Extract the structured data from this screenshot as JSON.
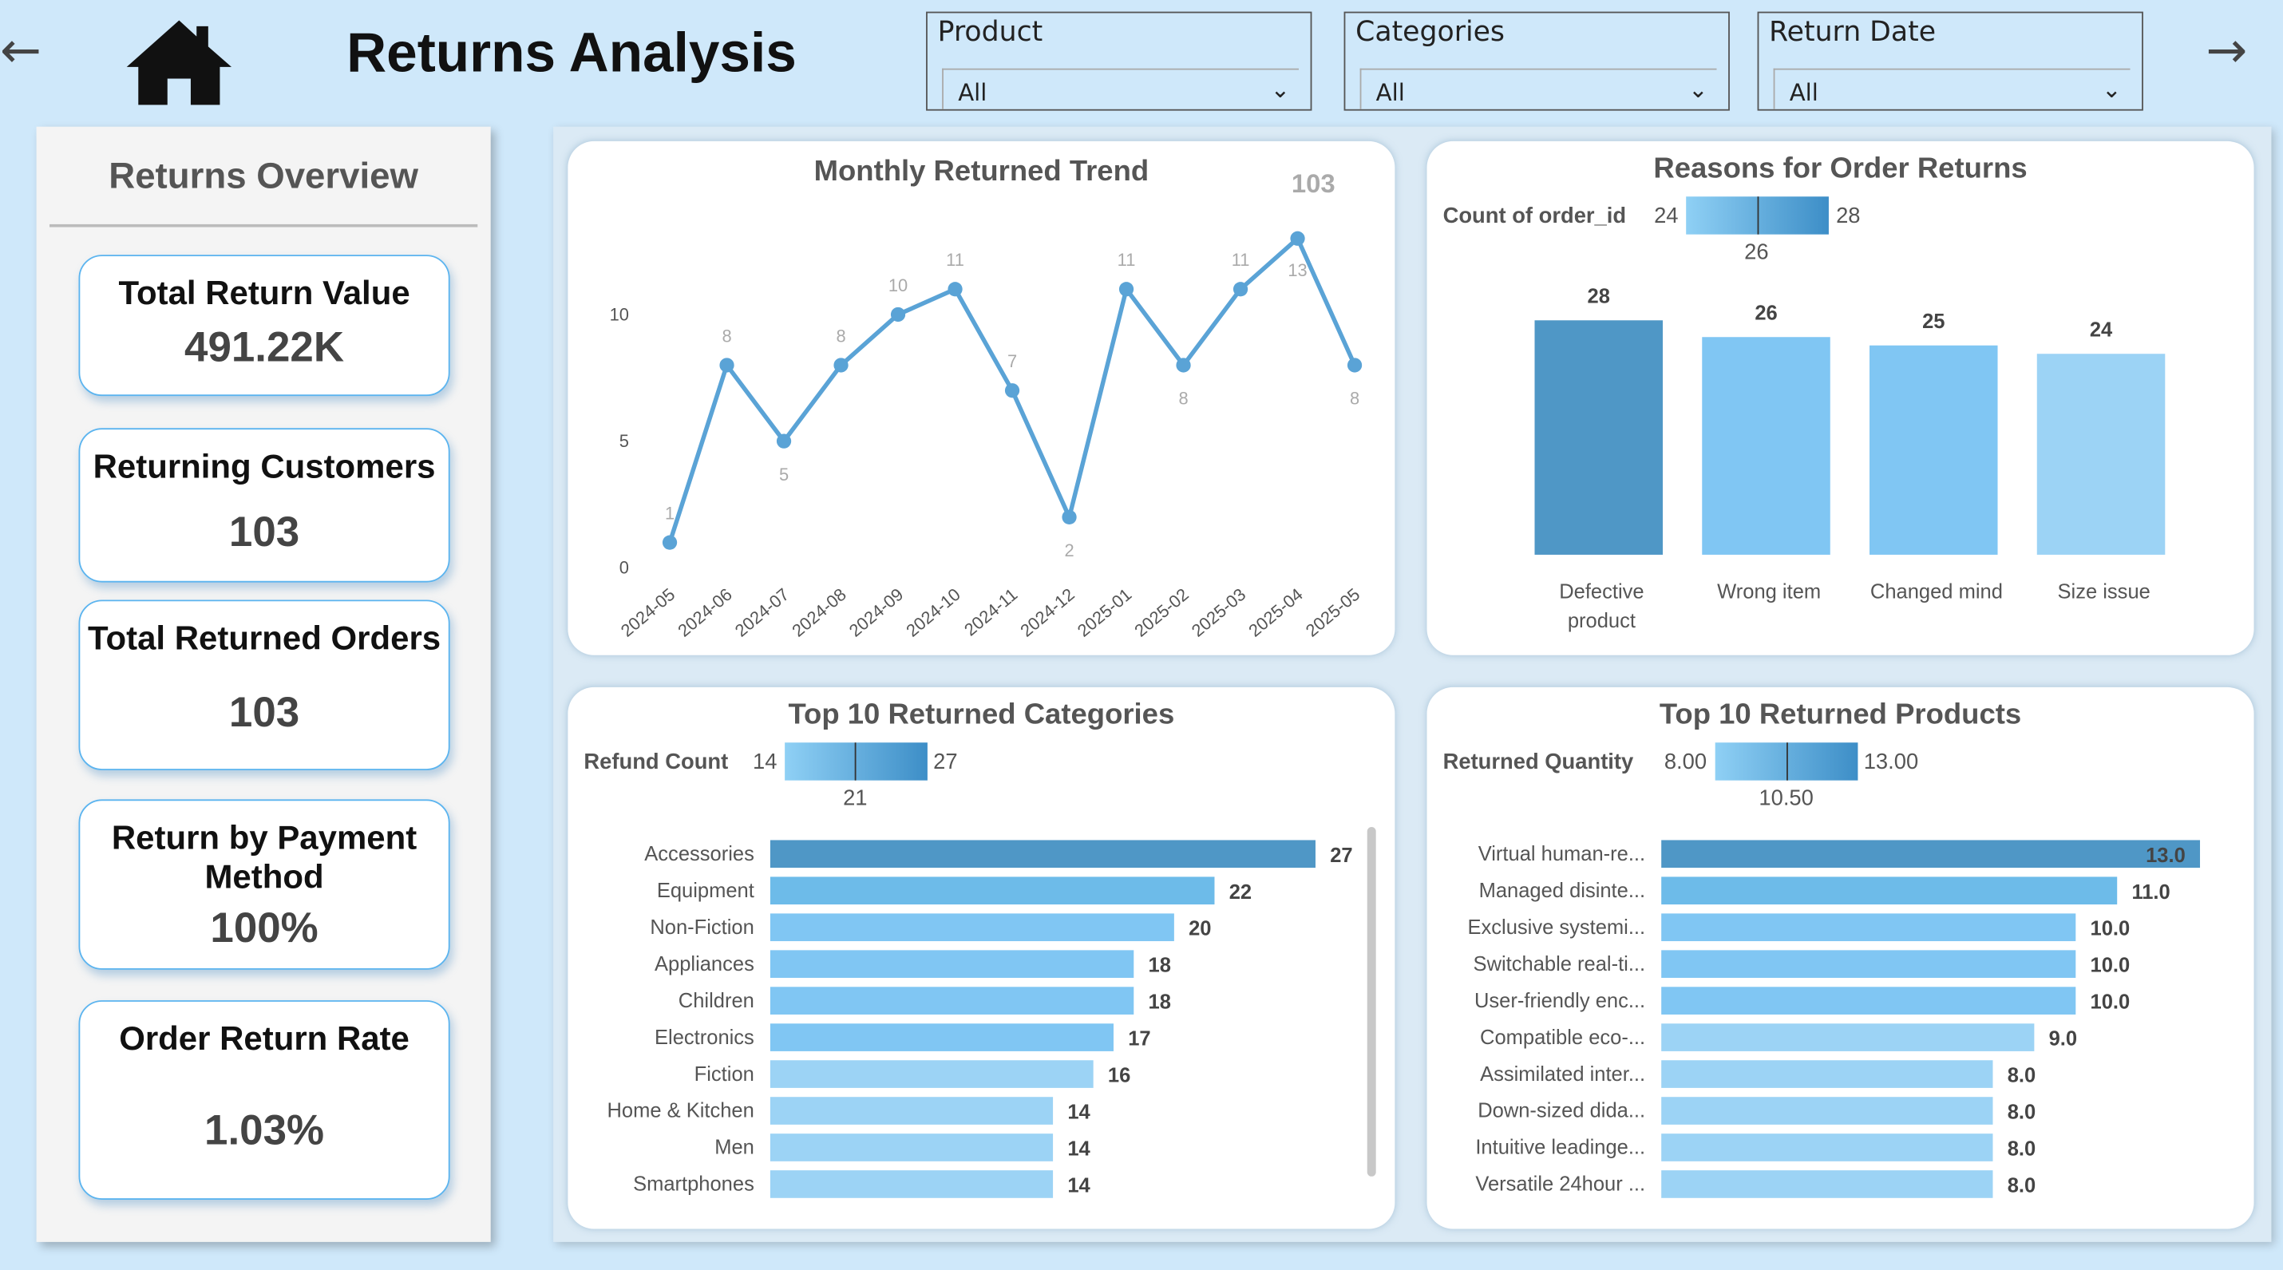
{
  "header": {
    "title": "Returns Analysis",
    "back_icon": "arrow-left-icon",
    "forward_icon": "arrow-right-icon",
    "home_icon": "home-icon",
    "slicers": [
      {
        "label": "Product",
        "value": "All"
      },
      {
        "label": "Categories",
        "value": "All"
      },
      {
        "label": "Return Date",
        "value": "All"
      }
    ]
  },
  "overview": {
    "title": "Returns Overview",
    "kpis": [
      {
        "label": "Total Return Value",
        "value": "491.22K"
      },
      {
        "label": "Returning Customers",
        "value": "103"
      },
      {
        "label": "Total Returned Orders",
        "value": "103"
      },
      {
        "label": "Return by Payment Method",
        "value": "100%"
      },
      {
        "label": "Order Return Rate",
        "value": "1.03%"
      }
    ]
  },
  "colors": {
    "line": "#5aa3d6",
    "bar_max": "#4f97c6",
    "bar_high": "#6dbbe9",
    "bar_mid": "#80c6f3",
    "bar_low": "#9cd3f5"
  },
  "chart_data": [
    {
      "type": "line",
      "title": "Monthly Returned Trend",
      "total": "103",
      "categories": [
        "2024-05",
        "2024-06",
        "2024-07",
        "2024-08",
        "2024-09",
        "2024-10",
        "2024-11",
        "2024-12",
        "2025-01",
        "2025-02",
        "2025-03",
        "2025-04",
        "2025-05"
      ],
      "values": [
        1,
        8,
        5,
        8,
        10,
        11,
        7,
        2,
        11,
        8,
        11,
        13,
        8
      ],
      "yticks": [
        0,
        5,
        10
      ],
      "ylim": [
        0,
        13
      ]
    },
    {
      "type": "bar",
      "title": "Reasons for Order Returns",
      "legend": {
        "label": "Count of order_id",
        "min": "24",
        "max": "28",
        "mid": "26"
      },
      "categories": [
        "Defective product",
        "Wrong item",
        "Changed mind",
        "Size issue"
      ],
      "values": [
        28,
        26,
        25,
        24
      ]
    },
    {
      "type": "bar",
      "orientation": "horizontal",
      "title": "Top 10 Returned Categories",
      "legend": {
        "label": "Refund Count",
        "min": "14",
        "max": "27",
        "mid": "21"
      },
      "categories": [
        "Accessories",
        "Equipment",
        "Non-Fiction",
        "Appliances",
        "Children",
        "Electronics",
        "Fiction",
        "Home & Kitchen",
        "Men",
        "Smartphones"
      ],
      "values": [
        27,
        22,
        20,
        18,
        18,
        17,
        16,
        14,
        14,
        14
      ],
      "labels": [
        "27",
        "22",
        "20",
        "18",
        "18",
        "17",
        "16",
        "14",
        "14",
        "14"
      ]
    },
    {
      "type": "bar",
      "orientation": "horizontal",
      "title": "Top 10 Returned Products",
      "legend": {
        "label": "Returned Quantity",
        "min": "8.00",
        "max": "13.00",
        "mid": "10.50"
      },
      "categories": [
        "Virtual human-re...",
        "Managed disinte...",
        "Exclusive systemi...",
        "Switchable real-ti...",
        "User-friendly enc...",
        "Compatible eco-...",
        "Assimilated inter...",
        "Down-sized dida...",
        "Intuitive leadinge...",
        "Versatile 24hour ..."
      ],
      "values": [
        13,
        11,
        10,
        10,
        10,
        9,
        8,
        8,
        8,
        8
      ],
      "labels": [
        "13.0",
        "11.0",
        "10.0",
        "10.0",
        "10.0",
        "9.0",
        "8.0",
        "8.0",
        "8.0",
        "8.0"
      ]
    }
  ]
}
